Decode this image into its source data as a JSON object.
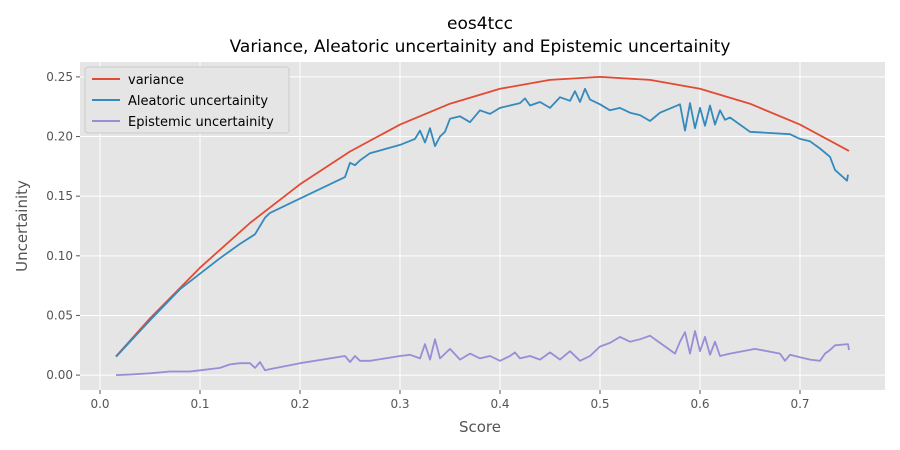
{
  "chart_data": {
    "type": "line",
    "title": "eos4tcc",
    "subtitle": "Variance, Aleatoric uncertainity and Epistemic uncertainity",
    "xlabel": "Score",
    "ylabel": "Uncertainity",
    "xlim": [
      -0.02,
      0.785
    ],
    "ylim": [
      -0.0125,
      0.2625
    ],
    "xticks": [
      0.0,
      0.1,
      0.2,
      0.3,
      0.4,
      0.5,
      0.6,
      0.7
    ],
    "xtick_labels": [
      "0.0",
      "0.1",
      "0.2",
      "0.3",
      "0.4",
      "0.5",
      "0.6",
      "0.7"
    ],
    "yticks": [
      0.0,
      0.05,
      0.1,
      0.15,
      0.2,
      0.25
    ],
    "ytick_labels": [
      "0.00",
      "0.05",
      "0.10",
      "0.15",
      "0.20",
      "0.25"
    ],
    "grid": true,
    "legend_position": "upper left",
    "background": "#e5e5e5",
    "series": [
      {
        "name": "variance",
        "color": "#e24a33",
        "points": [
          [
            0.016,
            0.0157
          ],
          [
            0.05,
            0.0475
          ],
          [
            0.1,
            0.09
          ],
          [
            0.15,
            0.1275
          ],
          [
            0.2,
            0.16
          ],
          [
            0.25,
            0.1875
          ],
          [
            0.3,
            0.21
          ],
          [
            0.35,
            0.2275
          ],
          [
            0.4,
            0.24
          ],
          [
            0.45,
            0.2475
          ],
          [
            0.5,
            0.25
          ],
          [
            0.55,
            0.2475
          ],
          [
            0.6,
            0.24
          ],
          [
            0.65,
            0.2275
          ],
          [
            0.7,
            0.21
          ],
          [
            0.749,
            0.188
          ]
        ]
      },
      {
        "name": "Aleatoric uncertainity",
        "color": "#348abd",
        "points": [
          [
            0.016,
            0.0153
          ],
          [
            0.05,
            0.046
          ],
          [
            0.08,
            0.072
          ],
          [
            0.1,
            0.085
          ],
          [
            0.12,
            0.098
          ],
          [
            0.14,
            0.11
          ],
          [
            0.155,
            0.118
          ],
          [
            0.16,
            0.125
          ],
          [
            0.165,
            0.132
          ],
          [
            0.17,
            0.136
          ],
          [
            0.2,
            0.148
          ],
          [
            0.245,
            0.166
          ],
          [
            0.25,
            0.178
          ],
          [
            0.255,
            0.176
          ],
          [
            0.26,
            0.18
          ],
          [
            0.27,
            0.186
          ],
          [
            0.3,
            0.193
          ],
          [
            0.315,
            0.198
          ],
          [
            0.32,
            0.205
          ],
          [
            0.325,
            0.195
          ],
          [
            0.33,
            0.207
          ],
          [
            0.335,
            0.192
          ],
          [
            0.34,
            0.2
          ],
          [
            0.345,
            0.204
          ],
          [
            0.35,
            0.215
          ],
          [
            0.36,
            0.217
          ],
          [
            0.37,
            0.212
          ],
          [
            0.38,
            0.222
          ],
          [
            0.39,
            0.219
          ],
          [
            0.4,
            0.224
          ],
          [
            0.41,
            0.226
          ],
          [
            0.42,
            0.228
          ],
          [
            0.425,
            0.232
          ],
          [
            0.43,
            0.226
          ],
          [
            0.44,
            0.229
          ],
          [
            0.45,
            0.224
          ],
          [
            0.46,
            0.233
          ],
          [
            0.47,
            0.23
          ],
          [
            0.475,
            0.238
          ],
          [
            0.48,
            0.229
          ],
          [
            0.485,
            0.24
          ],
          [
            0.49,
            0.231
          ],
          [
            0.5,
            0.227
          ],
          [
            0.51,
            0.222
          ],
          [
            0.52,
            0.224
          ],
          [
            0.53,
            0.22
          ],
          [
            0.54,
            0.218
          ],
          [
            0.55,
            0.213
          ],
          [
            0.56,
            0.22
          ],
          [
            0.58,
            0.227
          ],
          [
            0.585,
            0.205
          ],
          [
            0.59,
            0.228
          ],
          [
            0.595,
            0.207
          ],
          [
            0.6,
            0.224
          ],
          [
            0.605,
            0.209
          ],
          [
            0.61,
            0.226
          ],
          [
            0.615,
            0.21
          ],
          [
            0.62,
            0.222
          ],
          [
            0.625,
            0.214
          ],
          [
            0.63,
            0.216
          ],
          [
            0.65,
            0.204
          ],
          [
            0.67,
            0.203
          ],
          [
            0.69,
            0.202
          ],
          [
            0.7,
            0.198
          ],
          [
            0.71,
            0.196
          ],
          [
            0.72,
            0.19
          ],
          [
            0.73,
            0.183
          ],
          [
            0.735,
            0.172
          ],
          [
            0.747,
            0.163
          ],
          [
            0.748,
            0.168
          ]
        ]
      },
      {
        "name": "Epistemic uncertainity",
        "color": "#988ed5",
        "points": [
          [
            0.016,
            0.0
          ],
          [
            0.03,
            0.0005
          ],
          [
            0.05,
            0.0015
          ],
          [
            0.07,
            0.003
          ],
          [
            0.09,
            0.003
          ],
          [
            0.1,
            0.004
          ],
          [
            0.12,
            0.006
          ],
          [
            0.13,
            0.009
          ],
          [
            0.14,
            0.01
          ],
          [
            0.15,
            0.01
          ],
          [
            0.155,
            0.006
          ],
          [
            0.16,
            0.011
          ],
          [
            0.165,
            0.004
          ],
          [
            0.17,
            0.005
          ],
          [
            0.2,
            0.01
          ],
          [
            0.245,
            0.016
          ],
          [
            0.25,
            0.011
          ],
          [
            0.255,
            0.016
          ],
          [
            0.26,
            0.012
          ],
          [
            0.27,
            0.012
          ],
          [
            0.3,
            0.016
          ],
          [
            0.31,
            0.017
          ],
          [
            0.32,
            0.014
          ],
          [
            0.325,
            0.026
          ],
          [
            0.33,
            0.013
          ],
          [
            0.335,
            0.03
          ],
          [
            0.34,
            0.014
          ],
          [
            0.35,
            0.022
          ],
          [
            0.36,
            0.013
          ],
          [
            0.37,
            0.018
          ],
          [
            0.38,
            0.014
          ],
          [
            0.39,
            0.016
          ],
          [
            0.4,
            0.012
          ],
          [
            0.41,
            0.016
          ],
          [
            0.415,
            0.019
          ],
          [
            0.42,
            0.014
          ],
          [
            0.43,
            0.016
          ],
          [
            0.44,
            0.013
          ],
          [
            0.45,
            0.019
          ],
          [
            0.46,
            0.013
          ],
          [
            0.47,
            0.02
          ],
          [
            0.48,
            0.012
          ],
          [
            0.49,
            0.016
          ],
          [
            0.5,
            0.024
          ],
          [
            0.51,
            0.027
          ],
          [
            0.52,
            0.032
          ],
          [
            0.53,
            0.028
          ],
          [
            0.54,
            0.03
          ],
          [
            0.55,
            0.033
          ],
          [
            0.56,
            0.027
          ],
          [
            0.575,
            0.018
          ],
          [
            0.58,
            0.028
          ],
          [
            0.585,
            0.036
          ],
          [
            0.59,
            0.018
          ],
          [
            0.595,
            0.037
          ],
          [
            0.6,
            0.02
          ],
          [
            0.605,
            0.032
          ],
          [
            0.61,
            0.017
          ],
          [
            0.615,
            0.028
          ],
          [
            0.62,
            0.016
          ],
          [
            0.63,
            0.018
          ],
          [
            0.655,
            0.022
          ],
          [
            0.68,
            0.018
          ],
          [
            0.685,
            0.012
          ],
          [
            0.69,
            0.017
          ],
          [
            0.7,
            0.015
          ],
          [
            0.71,
            0.013
          ],
          [
            0.72,
            0.012
          ],
          [
            0.725,
            0.018
          ],
          [
            0.73,
            0.021
          ],
          [
            0.735,
            0.025
          ],
          [
            0.748,
            0.026
          ],
          [
            0.749,
            0.021
          ]
        ]
      }
    ]
  }
}
